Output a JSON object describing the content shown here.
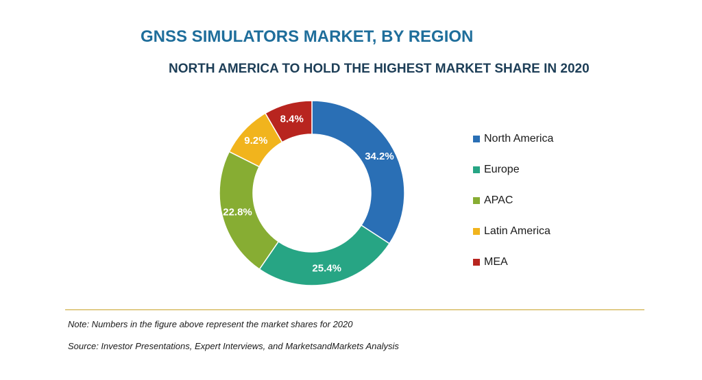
{
  "title": "GNSS SIMULATORS MARKET, BY REGION",
  "subtitle": "NORTH AMERICA TO HOLD THE HIGHEST MARKET SHARE IN 2020",
  "note": "Note: Numbers in the figure above represent the market shares for 2020",
  "source": "Source: Investor Presentations, Expert Interviews, and MarketsandMarkets Analysis",
  "colors": {
    "divider": "#c9a227",
    "title": "#1f6e9b",
    "subtitle": "#1d3e57"
  },
  "chart_data": {
    "type": "pie",
    "variant": "donut",
    "title": "GNSS SIMULATORS MARKET, BY REGION",
    "subtitle": "NORTH AMERICA TO HOLD THE HIGHEST MARKET SHARE IN 2020",
    "legend_position": "right",
    "slices": [
      {
        "label": "North America",
        "value": 34.2,
        "display": "34.2%",
        "color": "#2a6fb5"
      },
      {
        "label": "Europe",
        "value": 25.4,
        "display": "25.4%",
        "color": "#27a584"
      },
      {
        "label": "APAC",
        "value": 22.8,
        "display": "22.8%",
        "color": "#87ad33"
      },
      {
        "label": "Latin America",
        "value": 9.2,
        "display": "9.2%",
        "color": "#f1b41d"
      },
      {
        "label": "MEA",
        "value": 8.4,
        "display": "8.4%",
        "color": "#b8251f"
      }
    ]
  }
}
